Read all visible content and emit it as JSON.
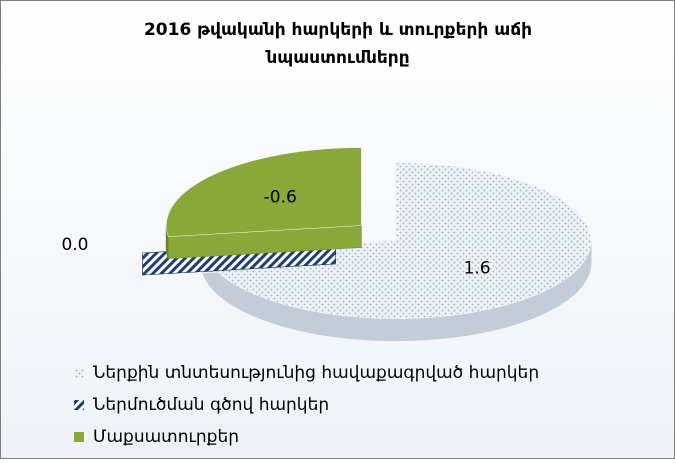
{
  "chart_data": {
    "type": "pie3d",
    "title": "2016 թվականի հարկերի  և տուրքերի աճի նպաստումները",
    "categories": [
      "Ներքին տնտեսությունից հավաքագրված հարկեր",
      "Ներմուծման գծով հարկեր",
      "Մաքսատուրքեր"
    ],
    "values": [
      1.6,
      0.0,
      -0.6
    ],
    "value_labels": [
      "1.6",
      "0.0",
      "-0.6"
    ],
    "colors": [
      "#e6ebf2",
      "#1f3f6e",
      "#8aa83a"
    ],
    "legend": "bottom"
  }
}
